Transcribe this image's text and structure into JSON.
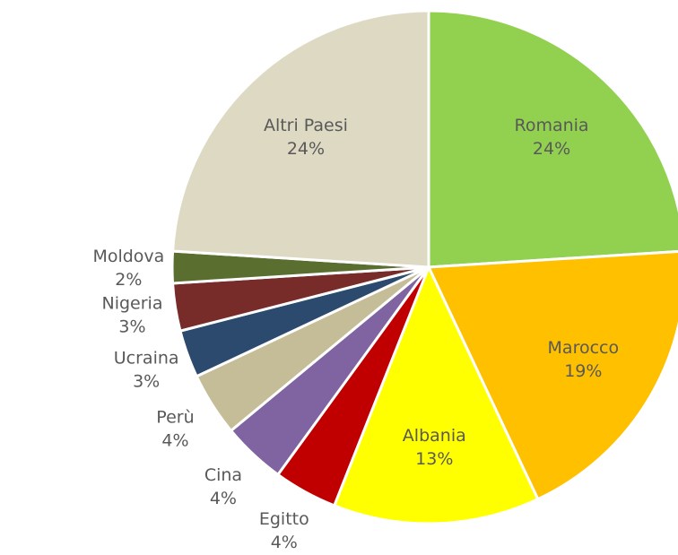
{
  "chart_data": {
    "type": "pie",
    "categories": [
      "Romania",
      "Marocco",
      "Albania",
      "Egitto",
      "Cina",
      "Perù",
      "Ucraina",
      "Nigeria",
      "Moldova",
      "Altri Paesi"
    ],
    "values": [
      24,
      19,
      13,
      4,
      4,
      4,
      3,
      3,
      2,
      24
    ],
    "value_labels": [
      "24%",
      "19%",
      "13%",
      "4%",
      "4%",
      "4%",
      "3%",
      "3%",
      "2%",
      "24%"
    ],
    "colors": [
      "#92d050",
      "#ffc000",
      "#ffff00",
      "#c00000",
      "#8064a2",
      "#c4bd97",
      "#2c4a6e",
      "#772c2a",
      "#5a6e30",
      "#ddd9c3"
    ]
  }
}
